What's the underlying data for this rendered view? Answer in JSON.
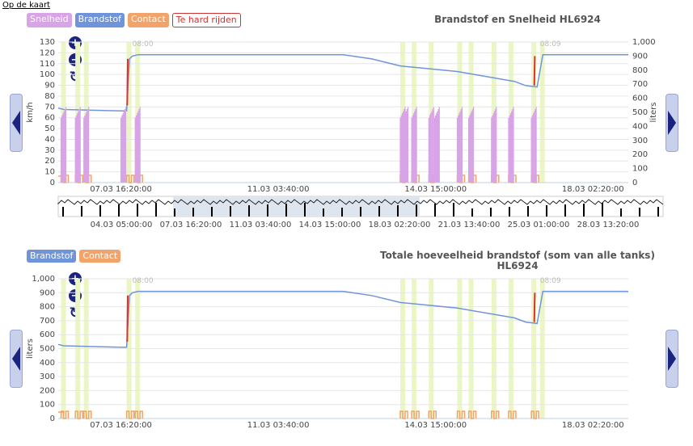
{
  "back_link": "Op de kaart",
  "colors": {
    "snelheid": "#d9a3e8",
    "brandstof": "#7094d9",
    "contact": "#f2a36a",
    "teHard": "#e03030",
    "band": "#eaf6c3",
    "navigator": "#dde5ee"
  },
  "chart_data": [
    {
      "type": "line",
      "title": "Brandstof en Snelheid HL6924",
      "legend": [
        {
          "name": "Snelheid",
          "color": "#d9a3e8"
        },
        {
          "name": "Brandstof",
          "color": "#7094d9"
        },
        {
          "name": "Contact",
          "color": "#f2a36a"
        },
        {
          "name": "Te hard rijden",
          "color": "#e03030",
          "outline": true
        }
      ],
      "x_ticks": [
        "07.03 16:20:00",
        "11.03 03:40:00",
        "14.03 15:00:00",
        "18.03 02:20:00"
      ],
      "y_left": {
        "label": "km/h",
        "range": [
          0,
          130
        ],
        "ticks": [
          "0",
          "10",
          "20",
          "30",
          "40",
          "50",
          "60",
          "70",
          "80",
          "90",
          "100",
          "110",
          "120",
          "130"
        ]
      },
      "y_right": {
        "label": "liters",
        "range": [
          0,
          1000
        ],
        "ticks": [
          "0",
          "100",
          "200",
          "300",
          "400",
          "500",
          "600",
          "700",
          "800",
          "900",
          "1,000"
        ]
      },
      "annotations": [
        "08:00",
        "08:09"
      ],
      "series": [
        {
          "name": "Brandstof",
          "x": [
            0,
            0.01,
            0.11,
            0.12,
            0.125,
            0.13,
            0.14,
            0.5,
            0.55,
            0.6,
            0.7,
            0.8,
            0.82,
            0.84,
            0.85,
            1.0
          ],
          "y": [
            530,
            520,
            510,
            510,
            880,
            900,
            910,
            910,
            880,
            830,
            790,
            720,
            690,
            680,
            910,
            910
          ]
        },
        {
          "name": "Te hard rijden",
          "x": [
            0.121,
            0.122
          ],
          "y": [
            550,
            880
          ]
        },
        {
          "name": "Te hard rijden 2",
          "x": [
            0.835,
            0.836
          ],
          "y": [
            690,
            900
          ]
        }
      ],
      "speed_bursts": [
        0.005,
        0.03,
        0.045,
        0.11,
        0.135,
        0.6,
        0.605,
        0.62,
        0.65,
        0.66,
        0.7,
        0.72,
        0.76,
        0.79,
        0.83
      ],
      "contact_bursts": [
        0.005,
        0.03,
        0.045,
        0.12,
        0.135,
        0.6,
        0.62,
        0.65,
        0.7,
        0.72,
        0.76,
        0.79,
        0.83
      ]
    },
    {
      "type": "line",
      "title": "Totale hoeveelheid brandstof (som van alle tanks) HL6924",
      "legend": [
        {
          "name": "Brandstof",
          "color": "#7094d9"
        },
        {
          "name": "Contact",
          "color": "#f2a36a"
        }
      ],
      "x_ticks": [
        "07.03 16:20:00",
        "11.03 03:40:00",
        "14.03 15:00:00",
        "18.03 02:20:00"
      ],
      "y_left": {
        "label": "liters",
        "range": [
          0,
          1000
        ],
        "ticks": [
          "0",
          "100",
          "200",
          "300",
          "400",
          "500",
          "600",
          "700",
          "800",
          "900",
          "1,000"
        ]
      },
      "annotations": [
        "08:00",
        "08:09"
      ]
    }
  ],
  "navigator": {
    "ticks": [
      "04.03 05:00:00",
      "07.03 16:20:00",
      "11.03 03:40:00",
      "14.03 15:00:00",
      "18.03 02:20:00",
      "21.03 13:40:00",
      "25.03 01:00:00",
      "28.03 13:20:00"
    ]
  }
}
